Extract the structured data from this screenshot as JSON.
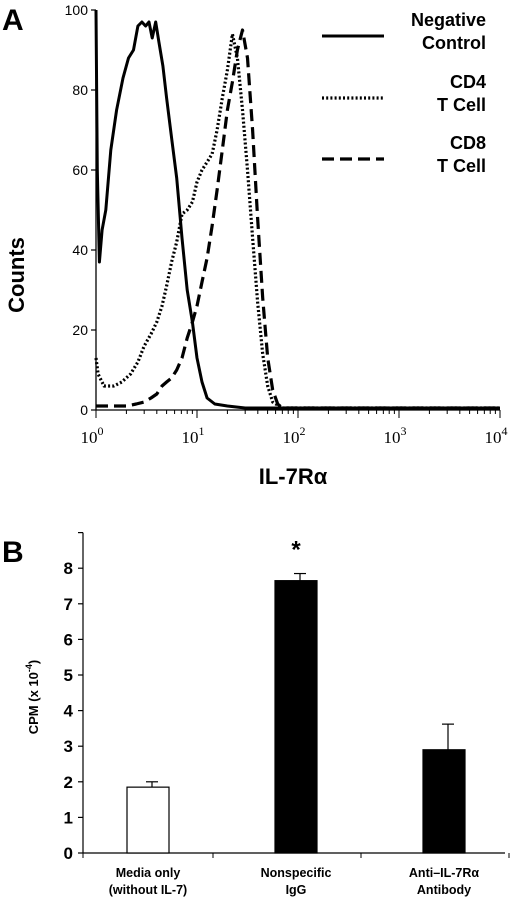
{
  "chart_data": [
    {
      "panel": "A",
      "type": "line",
      "xlabel": "IL-7Rα",
      "ylabel": "Counts",
      "xscale": "log",
      "xlim": [
        1,
        10000
      ],
      "ylim": [
        0,
        100
      ],
      "x_ticks": [
        {
          "base": "10",
          "exp": "0"
        },
        {
          "base": "10",
          "exp": "1"
        },
        {
          "base": "10",
          "exp": "2"
        },
        {
          "base": "10",
          "exp": "3"
        },
        {
          "base": "10",
          "exp": "4"
        }
      ],
      "y_ticks": [
        "0",
        "20",
        "40",
        "60",
        "80",
        "100"
      ],
      "legend_position": "top-right",
      "series": [
        {
          "name": "Negative Control",
          "legend_lines": [
            "Negative",
            "Control"
          ],
          "style": "solid",
          "points": [
            [
              1.0,
              100
            ],
            [
              1.03,
              60
            ],
            [
              1.08,
              37
            ],
            [
              1.15,
              45
            ],
            [
              1.25,
              50
            ],
            [
              1.4,
              65
            ],
            [
              1.6,
              75
            ],
            [
              1.85,
              83
            ],
            [
              2.1,
              88
            ],
            [
              2.35,
              90
            ],
            [
              2.6,
              96
            ],
            [
              2.85,
              97
            ],
            [
              3.1,
              96
            ],
            [
              3.35,
              97
            ],
            [
              3.6,
              93
            ],
            [
              3.9,
              97
            ],
            [
              4.2,
              92
            ],
            [
              4.6,
              86
            ],
            [
              5.0,
              78
            ],
            [
              5.6,
              68
            ],
            [
              6.3,
              58
            ],
            [
              7.1,
              43
            ],
            [
              8.0,
              30
            ],
            [
              9.0,
              22
            ],
            [
              10.0,
              13
            ],
            [
              11.2,
              7
            ],
            [
              12.6,
              3
            ],
            [
              15,
              1.5
            ],
            [
              20,
              1
            ],
            [
              30,
              0.5
            ],
            [
              100,
              0.5
            ],
            [
              10000,
              0.5
            ]
          ]
        },
        {
          "name": "CD4 T Cell",
          "legend_lines": [
            "CD4",
            "T Cell"
          ],
          "style": "dotted",
          "points": [
            [
              1.0,
              13
            ],
            [
              1.05,
              9
            ],
            [
              1.2,
              6
            ],
            [
              1.5,
              6
            ],
            [
              1.8,
              7
            ],
            [
              2.2,
              9
            ],
            [
              2.6,
              12
            ],
            [
              3.0,
              16
            ],
            [
              3.5,
              19
            ],
            [
              4.0,
              22
            ],
            [
              4.5,
              26
            ],
            [
              5.0,
              31
            ],
            [
              5.6,
              37
            ],
            [
              6.3,
              42
            ],
            [
              7.1,
              49
            ],
            [
              8.0,
              50
            ],
            [
              9.0,
              52
            ],
            [
              10.0,
              57
            ],
            [
              11.2,
              60
            ],
            [
              12.6,
              62
            ],
            [
              14.1,
              64
            ],
            [
              15.8,
              70
            ],
            [
              17.8,
              78
            ],
            [
              20.0,
              85
            ],
            [
              22.4,
              94
            ],
            [
              25.1,
              88
            ],
            [
              28.2,
              75
            ],
            [
              31.6,
              60
            ],
            [
              35.5,
              43
            ],
            [
              39.8,
              27
            ],
            [
              44.7,
              14
            ],
            [
              50.1,
              6
            ],
            [
              56.2,
              2
            ],
            [
              70,
              0.5
            ],
            [
              10000,
              0.5
            ]
          ]
        },
        {
          "name": "CD8 T Cell",
          "legend_lines": [
            "CD8",
            "T Cell"
          ],
          "style": "dashed",
          "points": [
            [
              1.0,
              1
            ],
            [
              1.5,
              1
            ],
            [
              2.0,
              1
            ],
            [
              2.5,
              1.5
            ],
            [
              3.0,
              2
            ],
            [
              3.5,
              3
            ],
            [
              4.0,
              4
            ],
            [
              4.5,
              6
            ],
            [
              5.0,
              7
            ],
            [
              5.6,
              8
            ],
            [
              6.3,
              10
            ],
            [
              7.1,
              13
            ],
            [
              8.0,
              18
            ],
            [
              9.0,
              22
            ],
            [
              10.0,
              26
            ],
            [
              11.2,
              32
            ],
            [
              12.6,
              38
            ],
            [
              14.1,
              46
            ],
            [
              15.8,
              55
            ],
            [
              17.8,
              65
            ],
            [
              20.0,
              75
            ],
            [
              22.4,
              82
            ],
            [
              25.1,
              90
            ],
            [
              28.2,
              95
            ],
            [
              31.6,
              88
            ],
            [
              35.5,
              70
            ],
            [
              39.8,
              48
            ],
            [
              44.7,
              28
            ],
            [
              50.1,
              13
            ],
            [
              56.2,
              5
            ],
            [
              63,
              1.5
            ],
            [
              70,
              0.5
            ],
            [
              10000,
              0.5
            ]
          ]
        }
      ]
    },
    {
      "panel": "B",
      "type": "bar",
      "ylabel": "CPM (x 10",
      "ylabel_exp": "-4",
      "ylabel_close": ")",
      "ylim": [
        0,
        9
      ],
      "y_ticks": [
        "0",
        "1",
        "2",
        "3",
        "4",
        "5",
        "6",
        "7",
        "8"
      ],
      "categories": [
        {
          "lines": [
            "Media only",
            "(without IL-7)"
          ],
          "value": 1.85,
          "error": 0.15,
          "fill": "#ffffff"
        },
        {
          "lines": [
            "Nonspecific",
            "IgG"
          ],
          "value": 7.65,
          "error": 0.2,
          "fill": "#000000"
        },
        {
          "lines": [
            "Anti–IL-7Rα",
            "Antibody"
          ],
          "value": 2.9,
          "error": 0.72,
          "fill": "#000000"
        }
      ],
      "annotation": {
        "text": "*",
        "category_index": 1
      }
    }
  ]
}
